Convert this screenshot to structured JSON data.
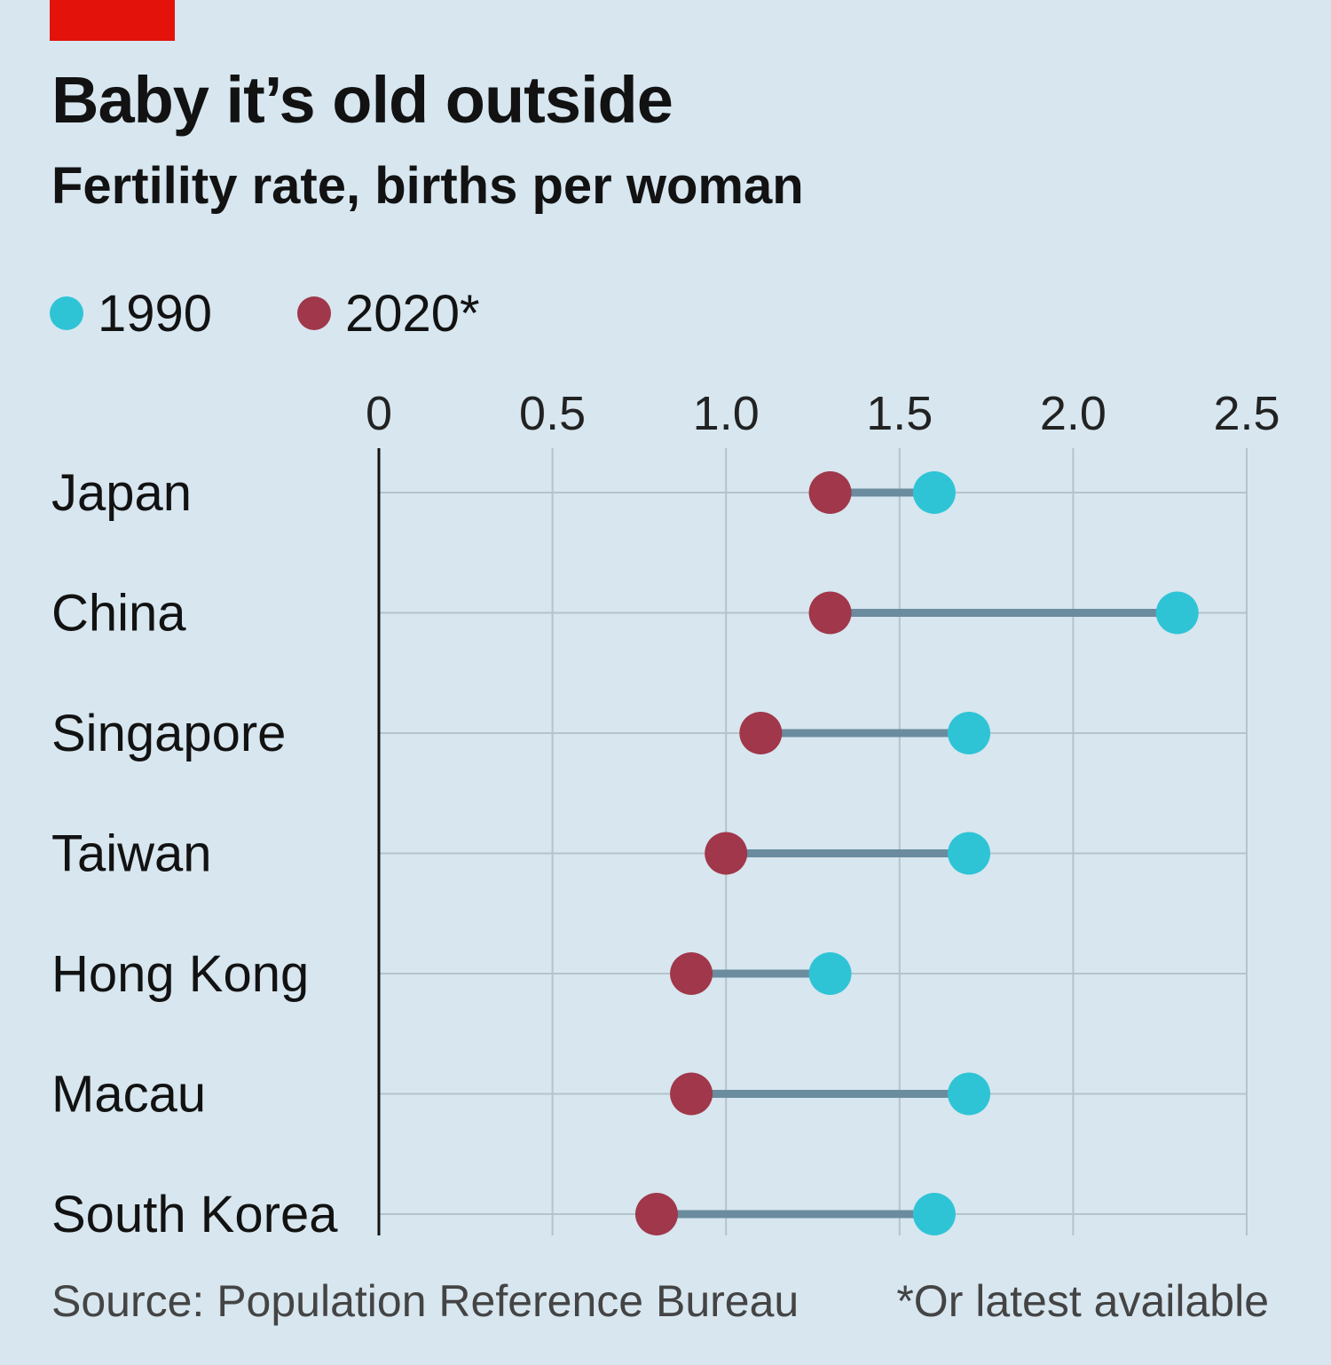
{
  "header": {
    "title": "Baby it’s old outside",
    "subtitle": "Fertility rate, births per woman"
  },
  "legend": [
    {
      "label": "1990",
      "color": "#2ec4d6"
    },
    {
      "label": "2020*",
      "color": "#a0374a"
    }
  ],
  "footer": {
    "source": "Source: Population Reference Bureau",
    "note": "*Or latest available"
  },
  "colors": {
    "background": "#d7e6ef",
    "brand_red": "#e3120b",
    "connector": "#6b8c9f",
    "grid": "#b5c3cc",
    "axis": "#121212"
  },
  "chart_data": {
    "type": "dumbbell",
    "title": "Baby it’s old outside",
    "subtitle": "Fertility rate, births per woman",
    "xlim": [
      0,
      2.5
    ],
    "ticks": [
      0,
      0.5,
      1.0,
      1.5,
      2.0,
      2.5
    ],
    "tick_labels": [
      "0",
      "0.5",
      "1.0",
      "1.5",
      "2.0",
      "2.5"
    ],
    "grid": true,
    "categories": [
      "Japan",
      "China",
      "Singapore",
      "Taiwan",
      "Hong Kong",
      "Macau",
      "South Korea"
    ],
    "series": [
      {
        "name": "1990",
        "color": "#2ec4d6",
        "values": [
          1.6,
          2.3,
          1.7,
          1.7,
          1.3,
          1.7,
          1.6
        ]
      },
      {
        "name": "2020*",
        "color": "#a0374a",
        "values": [
          1.3,
          1.3,
          1.1,
          1.0,
          0.9,
          0.9,
          0.8
        ]
      }
    ]
  }
}
